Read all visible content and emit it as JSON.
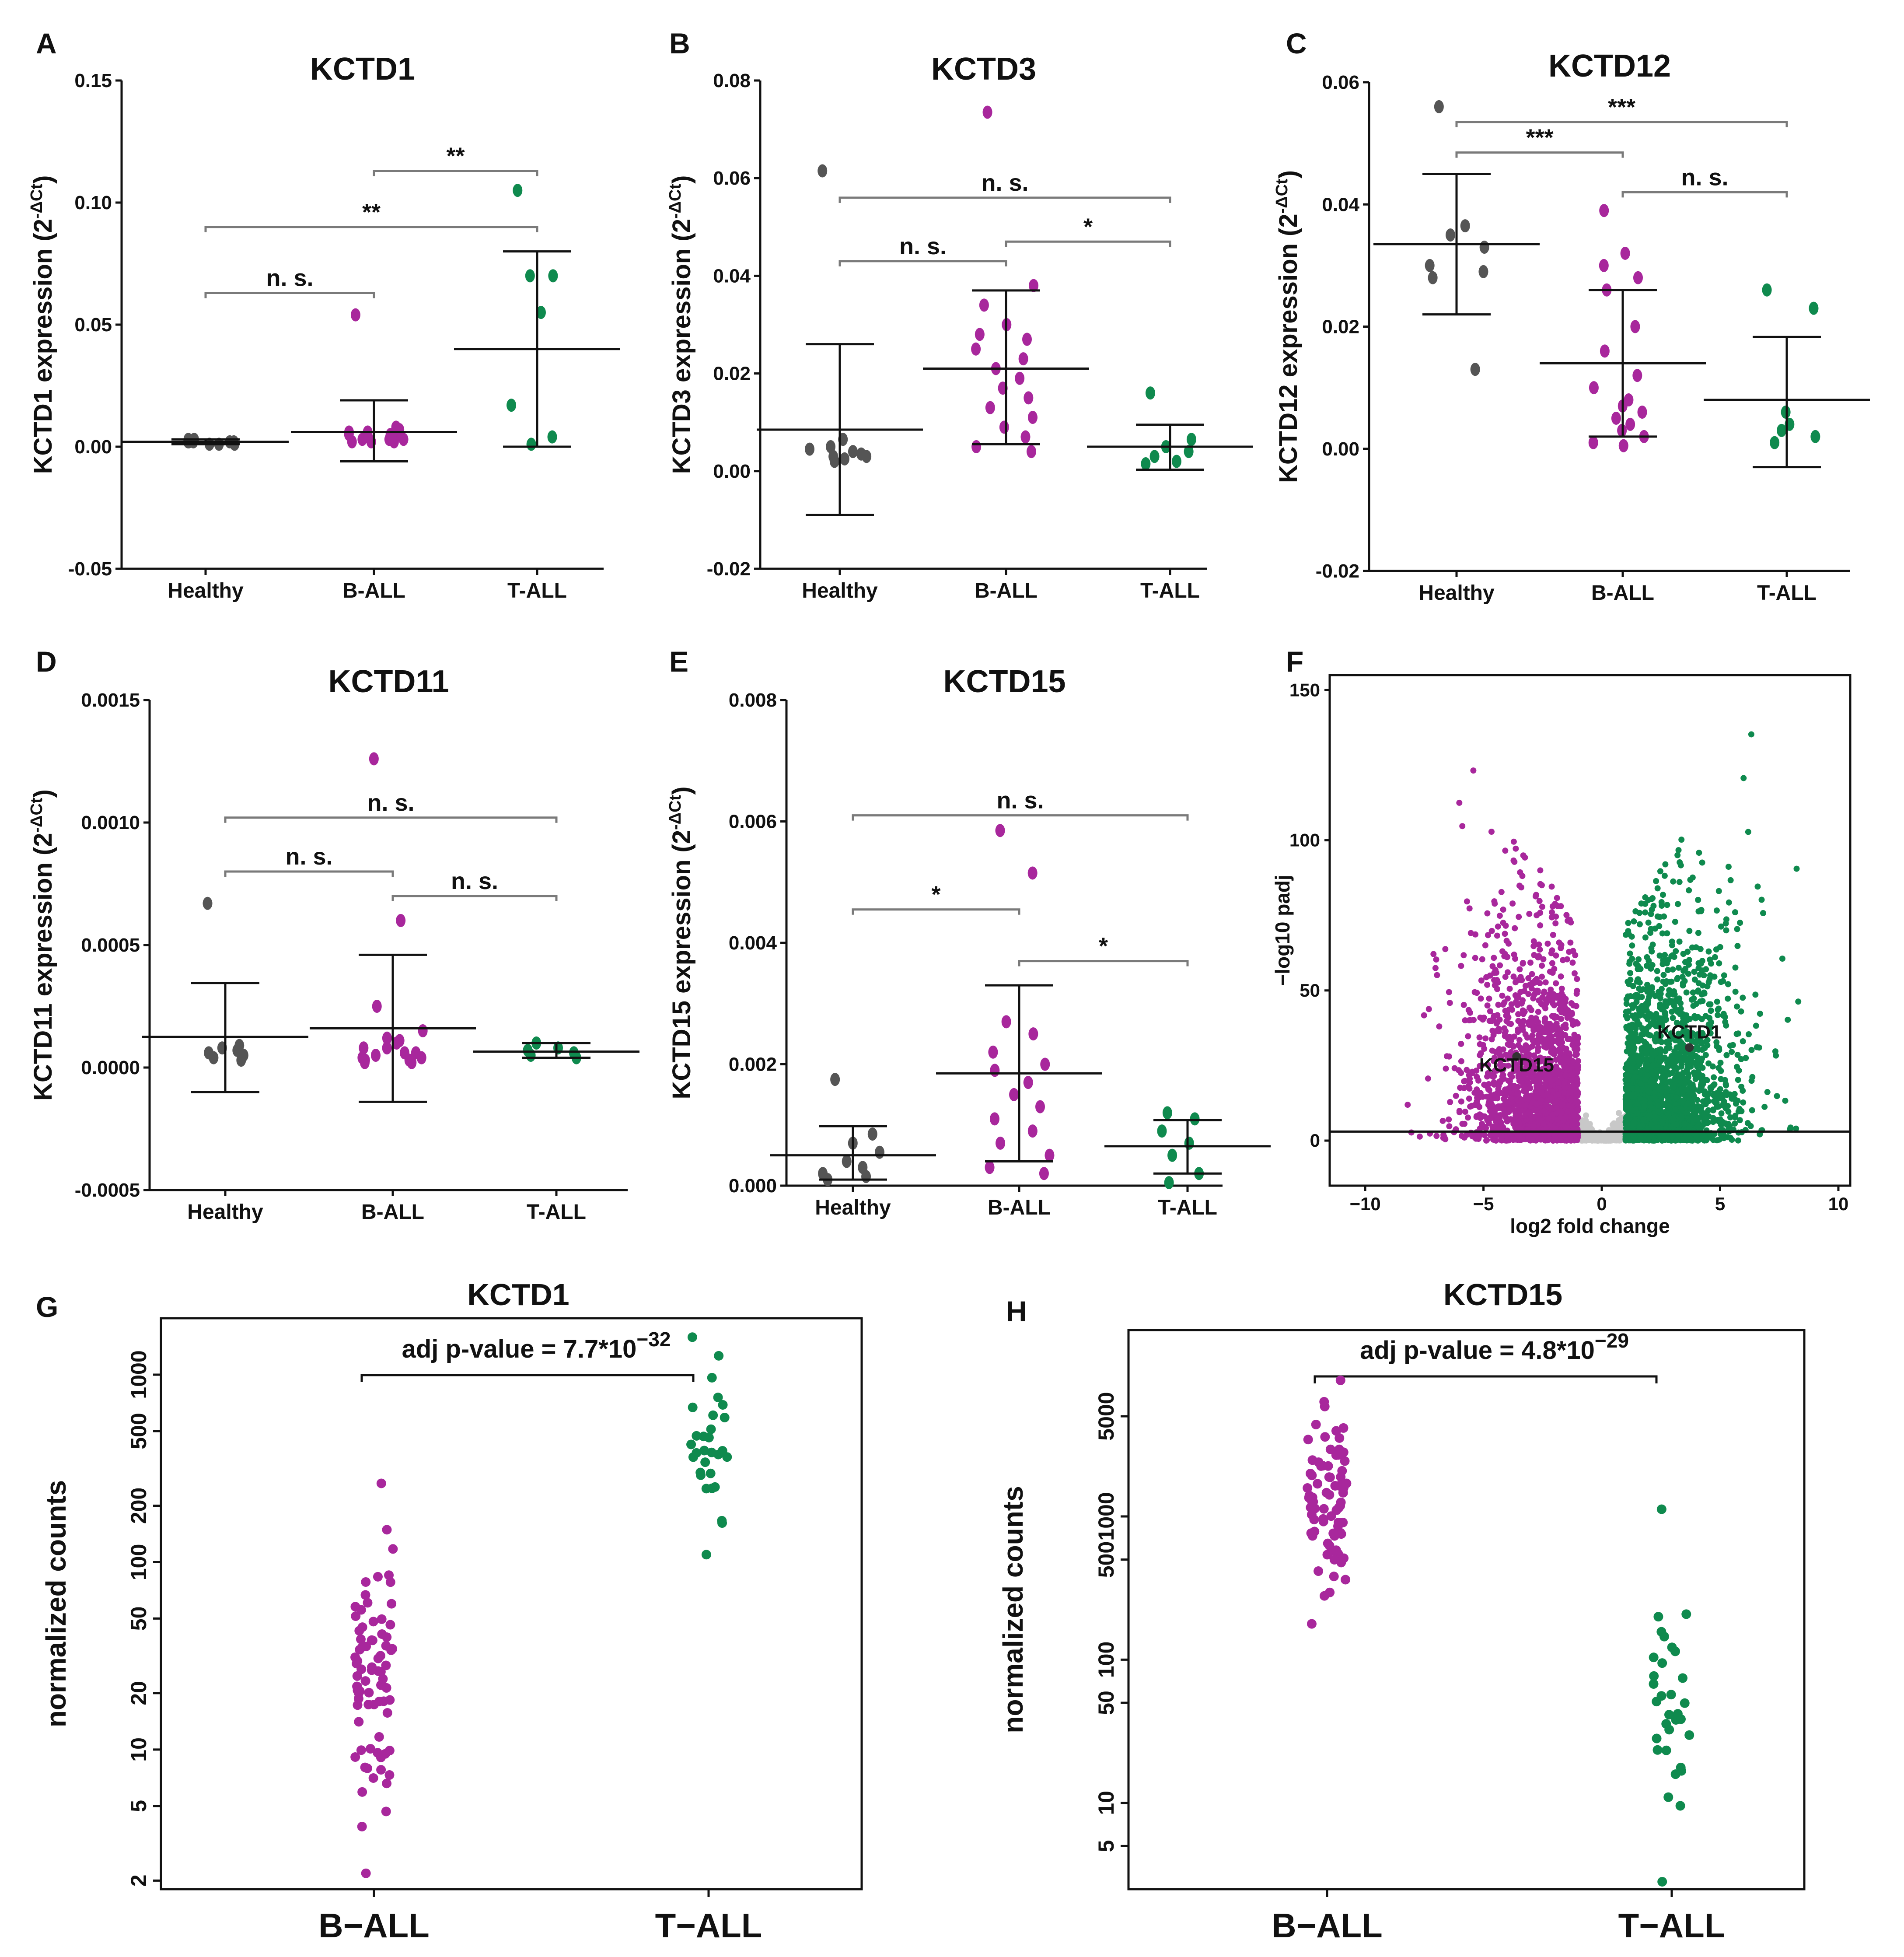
{
  "colors": {
    "healthy": "#555555",
    "ball": "#a8279c",
    "tall": "#0f8a4e",
    "volcano_ns": "#c8c8c8"
  },
  "chart_data": [
    {
      "id": "A",
      "type": "scatter",
      "letter": "A",
      "title": "KCTD1",
      "ylabel_main": "KCTD1 expression (2",
      "ylabel_sup": "-ΔCt",
      "ylabel_close": ")",
      "ylim": [
        -0.05,
        0.15
      ],
      "ticks": [
        {
          "v": -0.05,
          "label": "-0.05"
        },
        {
          "v": 0.0,
          "label": "0.00"
        },
        {
          "v": 0.05,
          "label": "0.05"
        },
        {
          "v": 0.1,
          "label": "0.10"
        },
        {
          "v": 0.15,
          "label": "0.15"
        }
      ],
      "categories": [
        "Healthy",
        "B-ALL",
        "T-ALL"
      ],
      "groups": [
        {
          "color": "healthy",
          "mean": 0.002,
          "sd_low": 0.001,
          "sd_high": 0.003,
          "points": [
            0.003,
            0.002,
            0.002,
            0.001,
            0.002,
            0.001,
            0.002,
            0.002,
            0.003,
            0.001
          ]
        },
        {
          "color": "ball",
          "mean": 0.006,
          "sd_low": -0.006,
          "sd_high": 0.019,
          "points": [
            0.054,
            0.008,
            0.006,
            0.005,
            0.004,
            0.003,
            0.003,
            0.002,
            0.002,
            0.004,
            0.006,
            0.007,
            0.005,
            0.003,
            0.002,
            0.004
          ]
        },
        {
          "color": "tall",
          "mean": 0.04,
          "sd_low": 0.0,
          "sd_high": 0.08,
          "points": [
            0.105,
            0.07,
            0.07,
            0.055,
            0.017,
            0.004,
            0.001
          ]
        }
      ],
      "brackets": [
        {
          "from": 0,
          "to": 1,
          "y": 0.063,
          "label": "n. s."
        },
        {
          "from": 0,
          "to": 2,
          "y": 0.09,
          "label": "**"
        },
        {
          "from": 1,
          "to": 2,
          "y": 0.113,
          "label": "**"
        }
      ]
    },
    {
      "id": "B",
      "type": "scatter",
      "letter": "B",
      "title": "KCTD3",
      "ylabel_main": "KCTD3 expression (2",
      "ylabel_sup": "-ΔCt",
      "ylabel_close": ")",
      "ylim": [
        -0.02,
        0.08
      ],
      "ticks": [
        {
          "v": -0.02,
          "label": "-0.02"
        },
        {
          "v": 0.0,
          "label": "0.00"
        },
        {
          "v": 0.02,
          "label": "0.02"
        },
        {
          "v": 0.04,
          "label": "0.04"
        },
        {
          "v": 0.06,
          "label": "0.06"
        },
        {
          "v": 0.08,
          "label": "0.08"
        }
      ],
      "categories": [
        "Healthy",
        "B-ALL",
        "T-ALL"
      ],
      "groups": [
        {
          "color": "healthy",
          "mean": 0.0085,
          "sd_low": -0.009,
          "sd_high": 0.026,
          "points": [
            0.0615,
            0.0065,
            0.005,
            0.004,
            0.003,
            0.0025,
            0.002,
            0.0035,
            0.0045,
            0.003
          ]
        },
        {
          "color": "ball",
          "mean": 0.021,
          "sd_low": 0.0055,
          "sd_high": 0.037,
          "points": [
            0.0735,
            0.038,
            0.034,
            0.03,
            0.028,
            0.027,
            0.025,
            0.023,
            0.021,
            0.019,
            0.017,
            0.015,
            0.013,
            0.011,
            0.009,
            0.007,
            0.005,
            0.004
          ]
        },
        {
          "color": "tall",
          "mean": 0.005,
          "sd_low": 0.0003,
          "sd_high": 0.0095,
          "points": [
            0.016,
            0.0065,
            0.005,
            0.004,
            0.003,
            0.002,
            0.0015
          ]
        }
      ],
      "brackets": [
        {
          "from": 0,
          "to": 1,
          "y": 0.043,
          "label": "n. s."
        },
        {
          "from": 0,
          "to": 2,
          "y": 0.056,
          "label": "n. s."
        },
        {
          "from": 1,
          "to": 2,
          "y": 0.047,
          "label": "*"
        }
      ]
    },
    {
      "id": "C",
      "type": "scatter",
      "letter": "C",
      "title": "KCTD12",
      "ylabel_main": "KCTD12 expression (2",
      "ylabel_sup": "-ΔCt",
      "ylabel_close": ")",
      "ylim": [
        -0.02,
        0.06
      ],
      "ticks": [
        {
          "v": -0.02,
          "label": "-0.02"
        },
        {
          "v": 0.0,
          "label": "0.00"
        },
        {
          "v": 0.02,
          "label": "0.02"
        },
        {
          "v": 0.04,
          "label": "0.04"
        },
        {
          "v": 0.06,
          "label": "0.06"
        }
      ],
      "categories": [
        "Healthy",
        "B-ALL",
        "T-ALL"
      ],
      "groups": [
        {
          "color": "healthy",
          "mean": 0.0335,
          "sd_low": 0.022,
          "sd_high": 0.045,
          "points": [
            0.056,
            0.0365,
            0.035,
            0.033,
            0.03,
            0.029,
            0.028,
            0.013
          ]
        },
        {
          "color": "ball",
          "mean": 0.014,
          "sd_low": 0.002,
          "sd_high": 0.026,
          "points": [
            0.039,
            0.032,
            0.03,
            0.028,
            0.026,
            0.02,
            0.016,
            0.012,
            0.01,
            0.008,
            0.007,
            0.006,
            0.005,
            0.004,
            0.003,
            0.002,
            0.001,
            0.0005
          ]
        },
        {
          "color": "tall",
          "mean": 0.008,
          "sd_low": -0.003,
          "sd_high": 0.0183,
          "points": [
            0.026,
            0.023,
            0.006,
            0.004,
            0.003,
            0.002,
            0.001
          ]
        }
      ],
      "brackets": [
        {
          "from": 0,
          "to": 1,
          "y": 0.0485,
          "label": "***"
        },
        {
          "from": 0,
          "to": 2,
          "y": 0.0535,
          "label": "***"
        },
        {
          "from": 1,
          "to": 2,
          "y": 0.042,
          "label": "n. s."
        }
      ]
    },
    {
      "id": "D",
      "type": "scatter",
      "letter": "D",
      "title": "KCTD11",
      "ylabel_main": "KCTD11 expression (2",
      "ylabel_sup": "-ΔCt",
      "ylabel_close": ")",
      "ylim": [
        -0.0005,
        0.0015
      ],
      "ticks": [
        {
          "v": -0.0005,
          "label": "-0.0005"
        },
        {
          "v": 0.0,
          "label": "0.0000"
        },
        {
          "v": 0.0005,
          "label": "0.0005"
        },
        {
          "v": 0.001,
          "label": "0.0010"
        },
        {
          "v": 0.0015,
          "label": "0.0015"
        }
      ],
      "categories": [
        "Healthy",
        "B-ALL",
        "T-ALL"
      ],
      "groups": [
        {
          "color": "healthy",
          "mean": 0.000125,
          "sd_low": -0.0001,
          "sd_high": 0.000345,
          "points": [
            0.00067,
            9e-05,
            8e-05,
            7e-05,
            6e-05,
            5e-05,
            4e-05,
            3e-05
          ]
        },
        {
          "color": "ball",
          "mean": 0.00016,
          "sd_low": -0.00014,
          "sd_high": 0.00046,
          "points": [
            0.00126,
            0.0006,
            0.00025,
            0.00015,
            0.00012,
            0.0001,
            8e-05,
            6e-05,
            5e-05,
            4e-05,
            3e-05,
            3e-05,
            2e-05,
            2e-05,
            4e-05,
            6e-05,
            8e-05,
            0.00011
          ]
        },
        {
          "color": "tall",
          "mean": 6.5e-05,
          "sd_low": 4e-05,
          "sd_high": 0.0001,
          "points": [
            0.0001,
            8e-05,
            7e-05,
            6e-05,
            5e-05,
            4e-05
          ]
        }
      ],
      "brackets": [
        {
          "from": 0,
          "to": 1,
          "y": 0.0008,
          "label": "n. s."
        },
        {
          "from": 0,
          "to": 2,
          "y": 0.00102,
          "label": "n. s."
        },
        {
          "from": 1,
          "to": 2,
          "y": 0.0007,
          "label": "n. s."
        }
      ]
    },
    {
      "id": "E",
      "type": "scatter",
      "letter": "E",
      "title": "KCTD15",
      "ylabel_main": "KCTD15 expression (2",
      "ylabel_sup": "-ΔCt",
      "ylabel_close": ")",
      "ylim": [
        0.0,
        0.008
      ],
      "ticks": [
        {
          "v": 0.0,
          "label": "0.000"
        },
        {
          "v": 0.002,
          "label": "0.002"
        },
        {
          "v": 0.004,
          "label": "0.004"
        },
        {
          "v": 0.006,
          "label": "0.006"
        },
        {
          "v": 0.008,
          "label": "0.008"
        }
      ],
      "categories": [
        "Healthy",
        "B-ALL",
        "T-ALL"
      ],
      "groups": [
        {
          "color": "healthy",
          "mean": 0.0005,
          "sd_low": 0.0001,
          "sd_high": 0.00098,
          "points": [
            0.00175,
            0.00085,
            0.0007,
            0.00055,
            0.0004,
            0.0003,
            0.0002,
            0.00015,
            0.0001
          ]
        },
        {
          "color": "ball",
          "mean": 0.00185,
          "sd_low": 0.0004,
          "sd_high": 0.0033,
          "points": [
            0.00585,
            0.00515,
            0.0027,
            0.0025,
            0.0022,
            0.002,
            0.0019,
            0.0017,
            0.0015,
            0.0013,
            0.0011,
            0.0009,
            0.0007,
            0.0005,
            0.0003,
            0.0002
          ]
        },
        {
          "color": "tall",
          "mean": 0.00065,
          "sd_low": 0.0002,
          "sd_high": 0.00108,
          "points": [
            0.0012,
            0.0011,
            0.0009,
            0.0007,
            0.0005,
            0.0002,
            5e-05
          ]
        }
      ],
      "brackets": [
        {
          "from": 0,
          "to": 1,
          "y": 0.00455,
          "label": "*"
        },
        {
          "from": 0,
          "to": 2,
          "y": 0.0061,
          "label": "n. s."
        },
        {
          "from": 1,
          "to": 2,
          "y": 0.0037,
          "label": "*"
        }
      ]
    },
    {
      "id": "F",
      "type": "scatter",
      "letter": "F",
      "subtype": "volcano",
      "xlabel": "log2 fold change",
      "ylabel": "−log10 padj",
      "xlim": [
        -11.5,
        10.5
      ],
      "ylim": [
        -15,
        155
      ],
      "xticks": [
        {
          "v": -10,
          "label": "−10"
        },
        {
          "v": -5,
          "label": "−5"
        },
        {
          "v": 0,
          "label": "0"
        },
        {
          "v": 5,
          "label": "5"
        },
        {
          "v": 10,
          "label": "10"
        }
      ],
      "yticks": [
        {
          "v": 0,
          "label": "0"
        },
        {
          "v": 50,
          "label": "50"
        },
        {
          "v": 100,
          "label": "100"
        },
        {
          "v": 150,
          "label": "150"
        }
      ],
      "threshold_y": 3,
      "labels": [
        {
          "text": "KCTD15",
          "x": -3.6,
          "y": 23
        },
        {
          "text": "KCTD1",
          "x": 3.7,
          "y": 34
        }
      ],
      "highlighted_genes": [
        {
          "name": "KCTD15",
          "x": -3.6,
          "y": 28
        },
        {
          "name": "KCTD1",
          "x": 3.7,
          "y": 31
        }
      ]
    },
    {
      "id": "G",
      "type": "scatter",
      "letter": "G",
      "title": "KCTD1",
      "scale": "log",
      "ylabel": "normalized counts",
      "ylim_log": [
        1.8,
        2000
      ],
      "ticks": [
        {
          "v": 2,
          "label": "2"
        },
        {
          "v": 5,
          "label": "5"
        },
        {
          "v": 10,
          "label": "10"
        },
        {
          "v": 20,
          "label": "20"
        },
        {
          "v": 50,
          "label": "50"
        },
        {
          "v": 100,
          "label": "100"
        },
        {
          "v": 200,
          "label": "200"
        },
        {
          "v": 500,
          "label": "500"
        },
        {
          "v": 1000,
          "label": "1000"
        }
      ],
      "categories": [
        "B−ALL",
        "T−ALL"
      ],
      "pvalue": {
        "prefix": "adj p-value = 7.7",
        "times": "*",
        "base": "10",
        "exp": "−32"
      },
      "groups": [
        {
          "color": "ball",
          "n": 80,
          "logmin": 0.34,
          "logmax": 2.42,
          "center": 1.45
        },
        {
          "color": "tall",
          "n": 30,
          "logmin": 2.04,
          "logmax": 3.2,
          "center": 2.65
        }
      ]
    },
    {
      "id": "H",
      "type": "scatter",
      "letter": "H",
      "title": "KCTD15",
      "scale": "log",
      "ylabel": "normalized counts",
      "ylim_log": [
        2.5,
        20000
      ],
      "ticks": [
        {
          "v": 5,
          "label": "5"
        },
        {
          "v": 10,
          "label": "10"
        },
        {
          "v": 50,
          "label": "50"
        },
        {
          "v": 100,
          "label": "100"
        },
        {
          "v": 500,
          "label": "500"
        },
        {
          "v": 1000,
          "label": "1000"
        },
        {
          "v": 5000,
          "label": "5000"
        }
      ],
      "categories": [
        "B−ALL",
        "T−ALL"
      ],
      "pvalue": {
        "prefix": "adj p-value = 4.8",
        "times": "*",
        "base": "10",
        "exp": "−29"
      },
      "groups": [
        {
          "color": "ball",
          "n": 80,
          "logmin": 2.25,
          "logmax": 3.95,
          "center": 3.2
        },
        {
          "color": "tall",
          "n": 32,
          "logmin": 0.45,
          "logmax": 3.05,
          "center": 1.9
        }
      ]
    }
  ]
}
